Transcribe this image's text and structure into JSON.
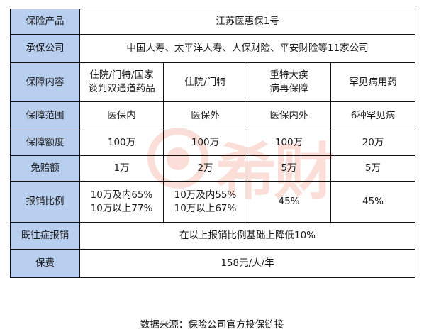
{
  "table": {
    "product": {
      "label": "保险产品",
      "value": "江苏医惠保1号"
    },
    "insurer": {
      "label": "承保公司",
      "value": "中国人寿、太平洋人寿、人保财险、平安财险等11家公司"
    },
    "coverage": {
      "label": "保障内容",
      "cols": [
        [
          "住院/门特/国家",
          "谈判双通道药品"
        ],
        [
          "住院/门特"
        ],
        [
          "重特大疾",
          "病再保障"
        ],
        [
          "罕见病用药"
        ]
      ]
    },
    "scope": {
      "label": "保障范围",
      "cols": [
        "医保内",
        "医保外",
        "医保内外",
        "6种罕见病"
      ]
    },
    "amount": {
      "label": "保障额度",
      "cols": [
        "100万",
        "100万",
        "100万",
        "20万"
      ]
    },
    "deductible": {
      "label": "免赔额",
      "cols": [
        "1万",
        "2万",
        "5万",
        "5万"
      ]
    },
    "ratio": {
      "label": "报销比例",
      "cols": [
        [
          "10万及内65%",
          "10万以上77%"
        ],
        [
          "10万及内55%",
          "10万以上67%"
        ],
        [
          "45%"
        ],
        [
          "45%"
        ]
      ]
    },
    "preexisting": {
      "label": "既往症报销",
      "value": "在以上报销比例基础上降低10%"
    },
    "premium": {
      "label": "保费",
      "value": "158元/人/年"
    }
  },
  "footer": "数据来源：保险公司官方投保链接",
  "watermark": {
    "text": "希财",
    "color": "#e8502a"
  },
  "colors": {
    "header_fill": "#b9cff0",
    "border": "#111111"
  }
}
